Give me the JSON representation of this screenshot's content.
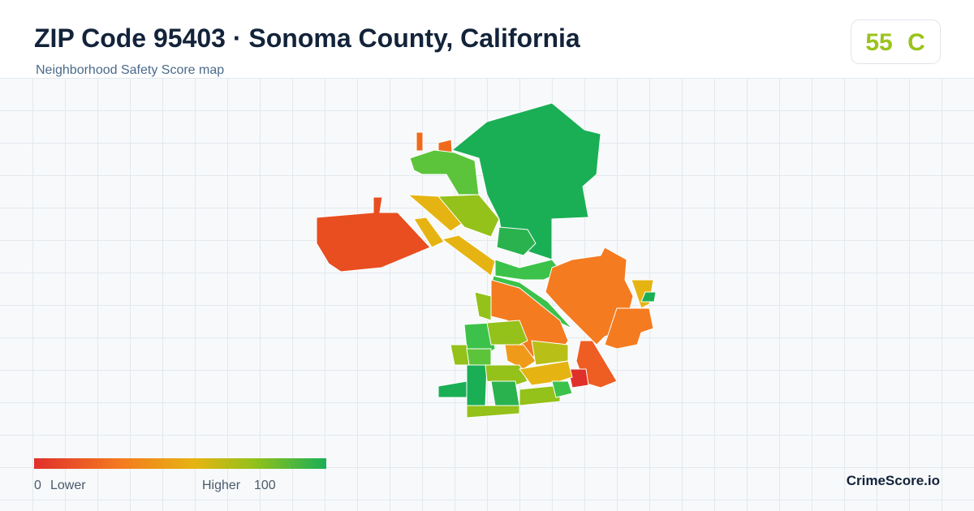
{
  "header": {
    "title": "ZIP Code 95403 · Sonoma County, California",
    "subtitle": "Neighborhood Safety Score map"
  },
  "score": {
    "value": 55,
    "grade": "C"
  },
  "legend": {
    "min": 0,
    "min_label": "Lower",
    "max_label": "Higher",
    "max": 100
  },
  "brand": "CrimeScore.io"
}
